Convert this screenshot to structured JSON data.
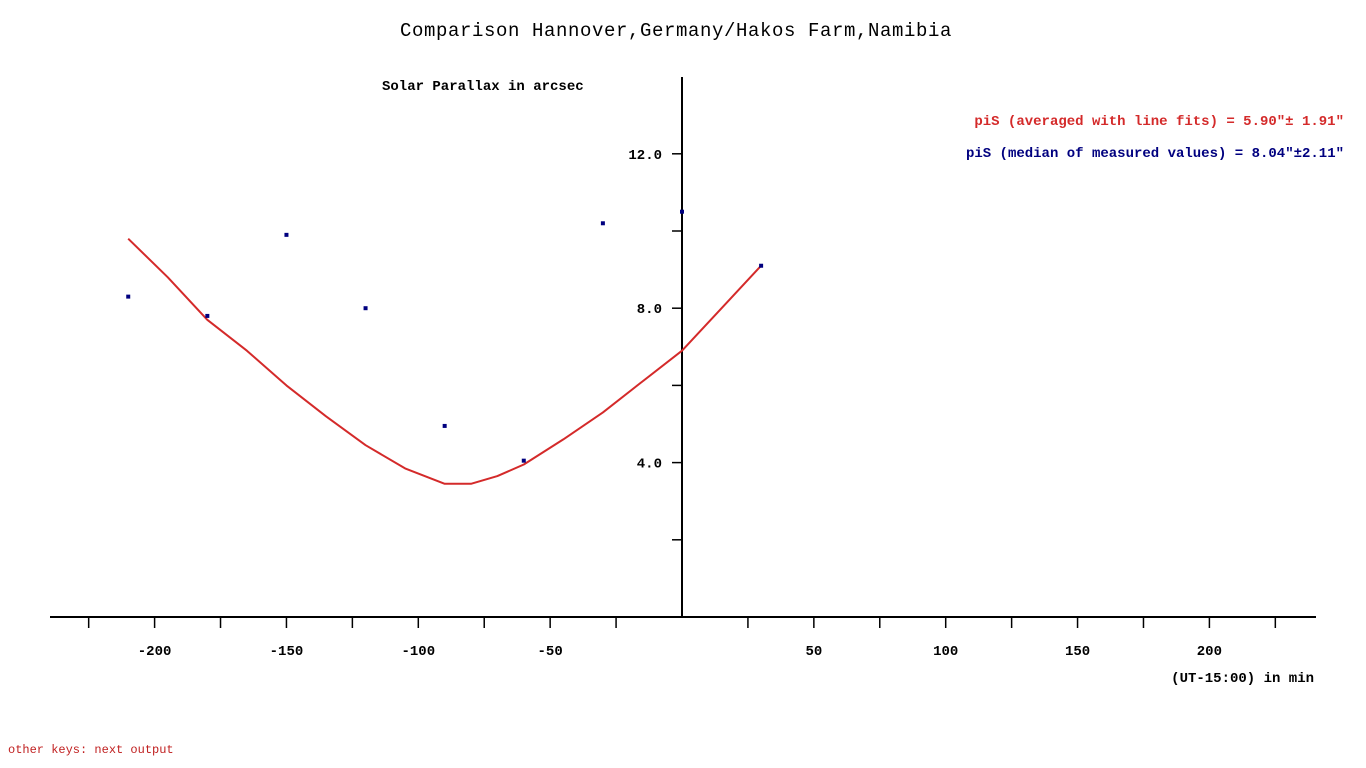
{
  "chart_data": {
    "type": "scatter",
    "title": "Comparison Hannover,Germany/Hakos Farm,Namibia",
    "ylabel": "Solar Parallax in arcsec",
    "xlabel": "(UT-15:00) in min",
    "xlim": [
      -240,
      240
    ],
    "ylim": [
      0,
      14
    ],
    "x_ticks_major": [
      -200,
      -150,
      -100,
      -50,
      50,
      100,
      150,
      200
    ],
    "x_tick_labels": [
      "-200",
      "-150",
      "-100",
      "-50",
      "50",
      "100",
      "150",
      "200"
    ],
    "x_ticks_minor": [
      -225,
      -175,
      -125,
      -75,
      -25,
      25,
      75,
      125,
      175,
      225
    ],
    "y_ticks": [
      2,
      4,
      6,
      8,
      10,
      12
    ],
    "y_tick_labels": [
      {
        "value": 12,
        "label": "12.0"
      },
      {
        "value": 8,
        "label": "8.0"
      },
      {
        "value": 4,
        "label": "4.0"
      }
    ],
    "grid": false,
    "series": [
      {
        "kind": "points",
        "color": "#00007f",
        "x": [
          -210,
          -180,
          -150,
          -120,
          -90,
          -60,
          -30,
          0,
          30
        ],
        "y": [
          8.3,
          7.8,
          9.9,
          8.0,
          4.95,
          4.05,
          10.2,
          10.5,
          9.1
        ]
      },
      {
        "kind": "line",
        "color": "#d42a2a",
        "x": [
          -210,
          -195,
          -180,
          -165,
          -150,
          -135,
          -120,
          -105,
          -90,
          -80,
          -70,
          -60,
          -45,
          -30,
          -15,
          0,
          15,
          30
        ],
        "y": [
          9.8,
          8.8,
          7.7,
          6.9,
          6.0,
          5.2,
          4.45,
          3.85,
          3.45,
          3.45,
          3.65,
          3.95,
          4.6,
          5.3,
          6.1,
          6.9,
          8.0,
          9.1
        ]
      }
    ],
    "legend": [
      {
        "text": "piS (averaged with line fits) = 5.90\"± 1.91\"",
        "color": "#d42a2a"
      },
      {
        "text": "piS (median of measured values) = 8.04\"±2.11\"",
        "color": "#00007f"
      }
    ],
    "legend_position": "top-right"
  },
  "footer": {
    "hint": "other keys: next output",
    "color": "#c02020"
  }
}
